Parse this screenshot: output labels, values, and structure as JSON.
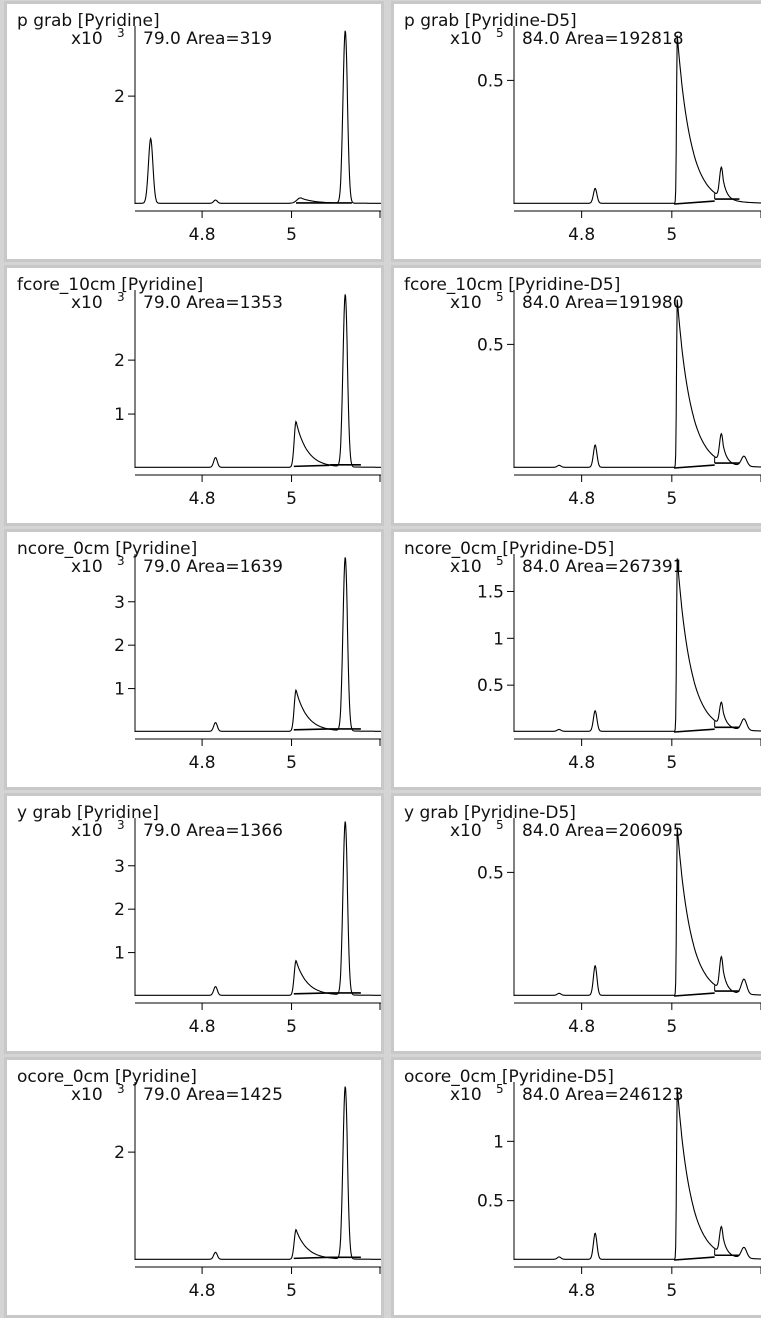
{
  "chart_data": [
    {
      "type": "line",
      "title": "p grab [Pyridine]",
      "scale_label": "x10",
      "scale_exp": "3",
      "peak_label": "79.0 Area=319",
      "x_ticks": [
        "4.8",
        "5"
      ],
      "y_ticks": [
        "2"
      ],
      "y_unit": 1000,
      "ylim": [
        0,
        3.3
      ],
      "xlim": [
        4.65,
        5.2
      ],
      "peaks": [
        {
          "center": 4.685,
          "height": 1.2,
          "width": 0.005,
          "tail": 0.001
        },
        {
          "center": 4.83,
          "height": 0.06,
          "width": 0.004,
          "tail": 0.001
        },
        {
          "center": 5.02,
          "height": 0.1,
          "width": 0.008,
          "tail": 0.03
        },
        {
          "center": 5.12,
          "height": 3.2,
          "width": 0.005,
          "tail": 0.002
        }
      ],
      "baselines": [
        {
          "x1": 5.01,
          "x2": 5.135,
          "y1": 0.02,
          "y2": 0.02
        }
      ]
    },
    {
      "type": "line",
      "title": "p grab [Pyridine-D5]",
      "scale_label": "x10",
      "scale_exp": "5",
      "peak_label": "84.0 Area=192818",
      "x_ticks": [
        "4.8",
        "5"
      ],
      "y_ticks": [
        "0.5"
      ],
      "y_unit": 100000,
      "ylim": [
        0,
        0.72
      ],
      "xlim": [
        4.65,
        5.2
      ],
      "peaks": [
        {
          "center": 4.83,
          "height": 0.06,
          "width": 0.004,
          "tail": 0.002
        },
        {
          "center": 5.012,
          "height": 0.68,
          "width": 0.0015,
          "tail": 0.03
        },
        {
          "center": 5.11,
          "height": 0.12,
          "width": 0.004,
          "tail": 0.008
        }
      ],
      "baselines": [
        {
          "x1": 5.005,
          "x2": 5.095,
          "y1": 0.0,
          "y2": 0.012,
          "drop": true
        },
        {
          "x1": 5.095,
          "x2": 5.15,
          "y1": 0.02,
          "y2": 0.02,
          "drop": true
        }
      ]
    },
    {
      "type": "line",
      "title": "fcore_10cm [Pyridine]",
      "scale_label": "x10",
      "scale_exp": "3",
      "peak_label": "79.0 Area=1353",
      "x_ticks": [
        "4.8",
        "5"
      ],
      "y_ticks": [
        "2",
        "1"
      ],
      "y_unit": 1000,
      "ylim": [
        0,
        3.3
      ],
      "xlim": [
        4.65,
        5.2
      ],
      "peaks": [
        {
          "center": 4.83,
          "height": 0.18,
          "width": 0.004,
          "tail": 0.002
        },
        {
          "center": 5.01,
          "height": 0.85,
          "width": 0.004,
          "tail": 0.025
        },
        {
          "center": 5.12,
          "height": 3.2,
          "width": 0.005,
          "tail": 0.002
        }
      ],
      "baselines": [
        {
          "x1": 5.005,
          "x2": 5.085,
          "y1": 0.03,
          "y2": 0.05
        },
        {
          "x1": 5.085,
          "x2": 5.155,
          "y1": 0.06,
          "y2": 0.06
        }
      ]
    },
    {
      "type": "line",
      "title": "fcore_10cm [Pyridine-D5]",
      "scale_label": "x10",
      "scale_exp": "5",
      "peak_label": "84.0 Area=191980",
      "x_ticks": [
        "4.8",
        "5"
      ],
      "y_ticks": [
        "0.5"
      ],
      "y_unit": 100000,
      "ylim": [
        0,
        0.72
      ],
      "xlim": [
        4.65,
        5.2
      ],
      "peaks": [
        {
          "center": 4.75,
          "height": 0.008,
          "width": 0.004,
          "tail": 0.001
        },
        {
          "center": 4.83,
          "height": 0.09,
          "width": 0.004,
          "tail": 0.001
        },
        {
          "center": 5.012,
          "height": 0.68,
          "width": 0.0015,
          "tail": 0.03
        },
        {
          "center": 5.11,
          "height": 0.11,
          "width": 0.004,
          "tail": 0.008
        },
        {
          "center": 5.16,
          "height": 0.04,
          "width": 0.006,
          "tail": 0.004
        }
      ],
      "baselines": [
        {
          "x1": 5.005,
          "x2": 5.095,
          "y1": 0.0,
          "y2": 0.012,
          "drop": true
        },
        {
          "x1": 5.095,
          "x2": 5.15,
          "y1": 0.02,
          "y2": 0.02,
          "drop": true
        }
      ]
    },
    {
      "type": "line",
      "title": "ncore_0cm [Pyridine]",
      "scale_label": "x10",
      "scale_exp": "3",
      "peak_label": "79.0 Area=1639",
      "x_ticks": [
        "4.8",
        "5"
      ],
      "y_ticks": [
        "3",
        "2",
        "1"
      ],
      "y_unit": 1000,
      "ylim": [
        0,
        4.1
      ],
      "xlim": [
        4.65,
        5.2
      ],
      "peaks": [
        {
          "center": 4.83,
          "height": 0.2,
          "width": 0.004,
          "tail": 0.002
        },
        {
          "center": 5.01,
          "height": 0.95,
          "width": 0.004,
          "tail": 0.025
        },
        {
          "center": 5.12,
          "height": 4.0,
          "width": 0.005,
          "tail": 0.002
        }
      ],
      "baselines": [
        {
          "x1": 5.005,
          "x2": 5.085,
          "y1": 0.05,
          "y2": 0.07
        },
        {
          "x1": 5.085,
          "x2": 5.155,
          "y1": 0.07,
          "y2": 0.07
        }
      ]
    },
    {
      "type": "line",
      "title": "ncore_0cm [Pyridine-D5]",
      "scale_label": "x10",
      "scale_exp": "5",
      "peak_label": "84.0 Area=267391",
      "x_ticks": [
        "4.8",
        "5"
      ],
      "y_ticks": [
        "1.5",
        "1",
        "0.5"
      ],
      "y_unit": 100000,
      "ylim": [
        0,
        1.9
      ],
      "xlim": [
        4.65,
        5.2
      ],
      "peaks": [
        {
          "center": 4.75,
          "height": 0.02,
          "width": 0.004,
          "tail": 0.001
        },
        {
          "center": 4.83,
          "height": 0.22,
          "width": 0.004,
          "tail": 0.001
        },
        {
          "center": 5.012,
          "height": 1.85,
          "width": 0.0015,
          "tail": 0.03
        },
        {
          "center": 5.11,
          "height": 0.24,
          "width": 0.004,
          "tail": 0.008
        },
        {
          "center": 5.16,
          "height": 0.12,
          "width": 0.006,
          "tail": 0.004
        }
      ],
      "baselines": [
        {
          "x1": 5.005,
          "x2": 5.095,
          "y1": 0.0,
          "y2": 0.03,
          "drop": true
        },
        {
          "x1": 5.095,
          "x2": 5.15,
          "y1": 0.05,
          "y2": 0.05,
          "drop": true
        }
      ]
    },
    {
      "type": "line",
      "title": "y grab [Pyridine]",
      "scale_label": "x10",
      "scale_exp": "3",
      "peak_label": "79.0 Area=1366",
      "x_ticks": [
        "4.8",
        "5"
      ],
      "y_ticks": [
        "3",
        "2",
        "1"
      ],
      "y_unit": 1000,
      "ylim": [
        0,
        4.1
      ],
      "xlim": [
        4.65,
        5.2
      ],
      "peaks": [
        {
          "center": 4.83,
          "height": 0.2,
          "width": 0.004,
          "tail": 0.002
        },
        {
          "center": 5.01,
          "height": 0.8,
          "width": 0.004,
          "tail": 0.025
        },
        {
          "center": 5.12,
          "height": 4.0,
          "width": 0.005,
          "tail": 0.002
        }
      ],
      "baselines": [
        {
          "x1": 5.005,
          "x2": 5.085,
          "y1": 0.05,
          "y2": 0.07
        },
        {
          "x1": 5.085,
          "x2": 5.155,
          "y1": 0.07,
          "y2": 0.07
        }
      ]
    },
    {
      "type": "line",
      "title": "y grab [Pyridine-D5]",
      "scale_label": "x10",
      "scale_exp": "5",
      "peak_label": "84.0 Area=206095",
      "x_ticks": [
        "4.8",
        "5"
      ],
      "y_ticks": [
        "0.5"
      ],
      "y_unit": 100000,
      "ylim": [
        0,
        0.72
      ],
      "xlim": [
        4.65,
        5.2
      ],
      "peaks": [
        {
          "center": 4.75,
          "height": 0.008,
          "width": 0.004,
          "tail": 0.001
        },
        {
          "center": 4.83,
          "height": 0.12,
          "width": 0.004,
          "tail": 0.001
        },
        {
          "center": 5.012,
          "height": 0.68,
          "width": 0.0015,
          "tail": 0.03
        },
        {
          "center": 5.11,
          "height": 0.13,
          "width": 0.004,
          "tail": 0.008
        },
        {
          "center": 5.16,
          "height": 0.06,
          "width": 0.006,
          "tail": 0.004
        }
      ],
      "baselines": [
        {
          "x1": 5.005,
          "x2": 5.095,
          "y1": 0.0,
          "y2": 0.012,
          "drop": true
        },
        {
          "x1": 5.095,
          "x2": 5.15,
          "y1": 0.02,
          "y2": 0.02,
          "drop": true
        }
      ]
    },
    {
      "type": "line",
      "title": "ocore_0cm [Pyridine]",
      "scale_label": "x10",
      "scale_exp": "3",
      "peak_label": "79.0 Area=1425",
      "x_ticks": [
        "4.8",
        "5"
      ],
      "y_ticks": [
        "2"
      ],
      "y_unit": 1000,
      "ylim": [
        0,
        3.3
      ],
      "xlim": [
        4.65,
        5.2
      ],
      "peaks": [
        {
          "center": 4.83,
          "height": 0.13,
          "width": 0.004,
          "tail": 0.002
        },
        {
          "center": 5.01,
          "height": 0.55,
          "width": 0.004,
          "tail": 0.025
        },
        {
          "center": 5.12,
          "height": 3.2,
          "width": 0.005,
          "tail": 0.002
        }
      ],
      "baselines": [
        {
          "x1": 5.005,
          "x2": 5.085,
          "y1": 0.03,
          "y2": 0.05
        },
        {
          "x1": 5.085,
          "x2": 5.155,
          "y1": 0.05,
          "y2": 0.05
        }
      ]
    },
    {
      "type": "line",
      "title": "ocore_0cm [Pyridine-D5]",
      "scale_label": "x10",
      "scale_exp": "5",
      "peak_label": "84.0 Area=246123",
      "x_ticks": [
        "4.8",
        "5"
      ],
      "y_ticks": [
        "1",
        "0.5"
      ],
      "y_unit": 100000,
      "ylim": [
        0,
        1.5
      ],
      "xlim": [
        4.65,
        5.2
      ],
      "peaks": [
        {
          "center": 4.75,
          "height": 0.02,
          "width": 0.004,
          "tail": 0.001
        },
        {
          "center": 4.83,
          "height": 0.22,
          "width": 0.004,
          "tail": 0.001
        },
        {
          "center": 5.012,
          "height": 1.45,
          "width": 0.0015,
          "tail": 0.03
        },
        {
          "center": 5.11,
          "height": 0.22,
          "width": 0.004,
          "tail": 0.008
        },
        {
          "center": 5.16,
          "height": 0.09,
          "width": 0.006,
          "tail": 0.004
        }
      ],
      "baselines": [
        {
          "x1": 5.005,
          "x2": 5.095,
          "y1": 0.0,
          "y2": 0.025,
          "drop": true
        },
        {
          "x1": 5.095,
          "x2": 5.15,
          "y1": 0.04,
          "y2": 0.04,
          "drop": true
        }
      ]
    }
  ],
  "style": {
    "line_color": "#000000",
    "panel_background": "#ffffff",
    "border_color": "#c8c8c8"
  }
}
